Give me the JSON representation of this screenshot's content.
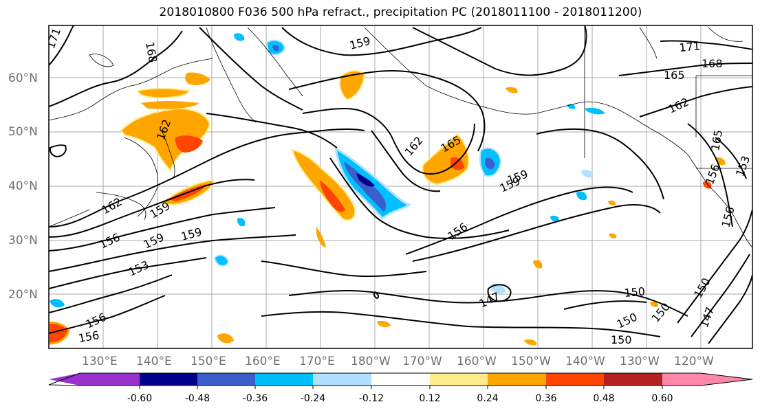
{
  "title": "2018010800 F036 500 hPa refract., precipitation PC (2018011100 - 2018011200)",
  "map": {
    "lat_labels": [
      "60°N",
      "50°N",
      "40°N",
      "30°N",
      "20°N"
    ],
    "lon_labels": [
      "130°E",
      "140°E",
      "150°E",
      "160°E",
      "170°E",
      "180°W",
      "170°W",
      "160°W",
      "150°W",
      "140°W",
      "130°W",
      "120°W"
    ],
    "contour_labels": [
      "171",
      "168",
      "159",
      "171",
      "168",
      "165",
      "162",
      "165",
      "162",
      "165",
      "159",
      "162",
      "159",
      "156",
      "159",
      "159",
      "156",
      "153",
      "150",
      "147",
      "150",
      "150",
      "150",
      "150",
      "147",
      "156",
      "156",
      "156",
      "156",
      "162",
      "159",
      "153"
    ]
  },
  "colorbar": {
    "tick_labels": [
      "-0.60",
      "-0.48",
      "-0.36",
      "-0.24",
      "-0.12",
      "0.12",
      "0.24",
      "0.36",
      "0.48",
      "0.60"
    ],
    "colors": [
      "#9932cc",
      "#00008b",
      "#3a5fcd",
      "#00bfff",
      "#b0e2ff",
      "#ffffff",
      "#ffec8b",
      "#ffa500",
      "#ff4500",
      "#b22222",
      "#ff88aa"
    ]
  }
}
